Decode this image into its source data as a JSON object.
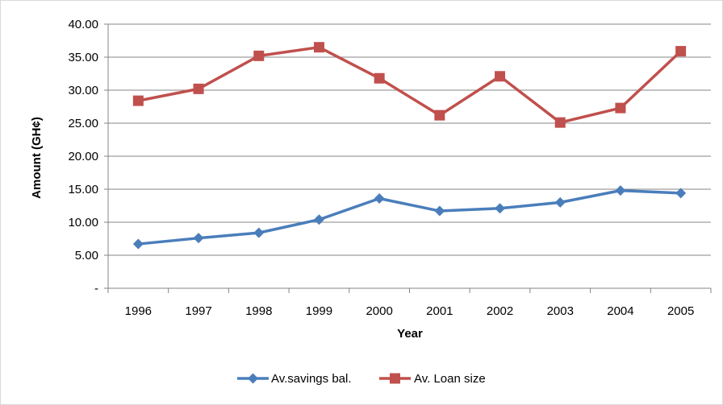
{
  "chart_data": {
    "type": "line",
    "xlabel": "Year",
    "ylabel": "Amount (GH¢)",
    "ylim": [
      0,
      40
    ],
    "y_ticks": [
      "-",
      "5.00",
      "10.00",
      "15.00",
      "20.00",
      "25.00",
      "30.00",
      "35.00",
      "40.00"
    ],
    "categories": [
      "1996",
      "1997",
      "1998",
      "1999",
      "2000",
      "2001",
      "2002",
      "2003",
      "2004",
      "2005"
    ],
    "grid": "horizontal",
    "legend_position": "bottom",
    "series": [
      {
        "name": "Av.savings bal.",
        "color": "#4a7ebb",
        "marker": "diamond",
        "values": [
          6.7,
          7.6,
          8.4,
          10.4,
          13.6,
          11.7,
          12.1,
          13.0,
          14.8,
          14.4
        ]
      },
      {
        "name": "Av. Loan size",
        "color": "#c0504d",
        "marker": "square",
        "values": [
          28.4,
          30.2,
          35.2,
          36.5,
          31.8,
          26.2,
          32.1,
          25.1,
          27.3,
          35.9
        ]
      }
    ]
  }
}
